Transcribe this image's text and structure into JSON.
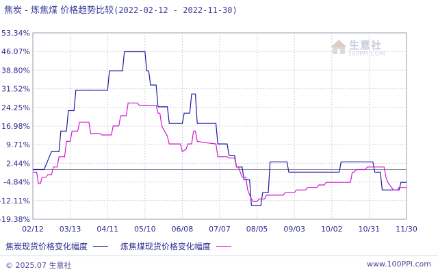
{
  "title": {
    "main": "焦炭 - 炼焦煤 价格趋势比较",
    "range": "(2022-02-12 - 2022-11-30)"
  },
  "watermark": {
    "brand": "生意社",
    "site": "100PPI.COM"
  },
  "footer": {
    "left": "© 2025.07 生意社",
    "right": "www.100PPI.com"
  },
  "chart_data": {
    "type": "line",
    "title": "焦炭 - 炼焦煤 价格趋势比较",
    "ylim": [
      -19.38,
      53.34
    ],
    "y_ticks": [
      "53.34%",
      "46.07%",
      "38.80%",
      "31.52%",
      "24.25%",
      "16.98%",
      "9.71%",
      "2.44%",
      "-4.84%",
      "-12.11%",
      "-19.38%"
    ],
    "x_ticks": [
      "02/12",
      "03/13",
      "04/11",
      "05/10",
      "06/08",
      "07/07",
      "08/05",
      "09/03",
      "10/02",
      "10/31",
      "11/30"
    ],
    "grid": true,
    "legend_position": "bottom",
    "series": [
      {
        "name": "焦炭现货价格变化幅度",
        "color": "#1a1aa0",
        "points": [
          [
            0,
            0
          ],
          [
            3,
            0
          ],
          [
            5,
            7
          ],
          [
            6,
            7
          ],
          [
            7,
            7
          ],
          [
            7.5,
            15
          ],
          [
            9,
            15
          ],
          [
            9.5,
            23
          ],
          [
            11,
            23
          ],
          [
            11.5,
            31
          ],
          [
            20,
            31
          ],
          [
            20.5,
            38.5
          ],
          [
            24,
            38.5
          ],
          [
            24.5,
            46
          ],
          [
            30,
            46
          ],
          [
            30.5,
            38.5
          ],
          [
            31,
            38.5
          ],
          [
            31.5,
            33
          ],
          [
            33,
            33
          ],
          [
            33.5,
            24.5
          ],
          [
            36,
            24.5
          ],
          [
            36.5,
            18
          ],
          [
            40,
            18
          ],
          [
            40.5,
            22
          ],
          [
            42,
            22
          ],
          [
            42.5,
            29.5
          ],
          [
            43.5,
            29.5
          ],
          [
            44,
            18
          ],
          [
            49,
            18
          ],
          [
            49.5,
            10
          ],
          [
            52,
            10
          ],
          [
            52.5,
            5.5
          ],
          [
            54,
            5.5
          ],
          [
            54.5,
            1
          ],
          [
            56,
            1
          ],
          [
            56.5,
            -4
          ],
          [
            58,
            -4
          ],
          [
            58.5,
            -14
          ],
          [
            61,
            -14
          ],
          [
            61.5,
            -9
          ],
          [
            63,
            -9
          ],
          [
            63.5,
            3
          ],
          [
            68,
            3
          ],
          [
            68.5,
            -1
          ],
          [
            82,
            -1
          ],
          [
            82.5,
            3
          ],
          [
            91,
            3
          ],
          [
            91.5,
            -1
          ],
          [
            93,
            -1
          ],
          [
            93.5,
            -8
          ],
          [
            98,
            -8
          ],
          [
            98.5,
            -5
          ],
          [
            100,
            -5
          ]
        ]
      },
      {
        "name": "炼焦煤现货价格变化幅度",
        "color": "#d018d0",
        "points": [
          [
            0,
            -1
          ],
          [
            1,
            -1
          ],
          [
            1.5,
            -5.5
          ],
          [
            2,
            -5.5
          ],
          [
            2.5,
            -3
          ],
          [
            3.5,
            -3
          ],
          [
            4,
            -2
          ],
          [
            5,
            -2
          ],
          [
            5.5,
            1
          ],
          [
            6.5,
            1
          ],
          [
            7,
            5
          ],
          [
            8.5,
            5
          ],
          [
            9,
            11
          ],
          [
            10,
            11
          ],
          [
            10.5,
            15
          ],
          [
            12,
            15
          ],
          [
            12.5,
            18.5
          ],
          [
            15,
            18.5
          ],
          [
            15.5,
            14
          ],
          [
            18,
            14
          ],
          [
            18.5,
            13.5
          ],
          [
            21,
            13.5
          ],
          [
            21.5,
            17
          ],
          [
            23,
            17
          ],
          [
            23.5,
            21
          ],
          [
            25,
            21
          ],
          [
            25.5,
            26
          ],
          [
            28,
            26
          ],
          [
            28.5,
            25
          ],
          [
            33,
            25
          ],
          [
            33.5,
            22
          ],
          [
            34,
            22
          ],
          [
            34.5,
            17
          ],
          [
            36,
            13
          ],
          [
            36.5,
            10
          ],
          [
            39.5,
            10
          ],
          [
            40,
            7
          ],
          [
            41,
            8
          ],
          [
            41.5,
            10
          ],
          [
            42.5,
            10
          ],
          [
            43,
            15
          ],
          [
            43.5,
            15
          ],
          [
            44,
            11
          ],
          [
            46,
            10.5
          ],
          [
            49,
            10
          ],
          [
            49.5,
            5
          ],
          [
            52,
            5
          ],
          [
            52.5,
            4.5
          ],
          [
            54,
            4.5
          ],
          [
            54.5,
            1
          ],
          [
            55,
            1
          ],
          [
            56,
            -3
          ],
          [
            57,
            -3
          ],
          [
            57.5,
            -8
          ],
          [
            58.5,
            -11.5
          ],
          [
            59,
            -12.5
          ],
          [
            60,
            -12.5
          ],
          [
            60.5,
            -11.5
          ],
          [
            62,
            -11.5
          ],
          [
            62.5,
            -10
          ],
          [
            67,
            -10
          ],
          [
            67.5,
            -9
          ],
          [
            70,
            -9
          ],
          [
            70.5,
            -8
          ],
          [
            73,
            -8
          ],
          [
            73.5,
            -7
          ],
          [
            76,
            -7
          ],
          [
            76.5,
            -6
          ],
          [
            78,
            -6
          ],
          [
            78.5,
            -5
          ],
          [
            85,
            -5
          ],
          [
            85.5,
            -1
          ],
          [
            86,
            -1
          ],
          [
            86.5,
            0
          ],
          [
            89,
            0
          ],
          [
            89.5,
            1
          ],
          [
            94,
            1
          ],
          [
            94.5,
            -3
          ],
          [
            95,
            -5
          ],
          [
            96.5,
            -8
          ],
          [
            97.5,
            -8
          ],
          [
            98,
            -7
          ],
          [
            100,
            -7
          ]
        ]
      }
    ]
  }
}
